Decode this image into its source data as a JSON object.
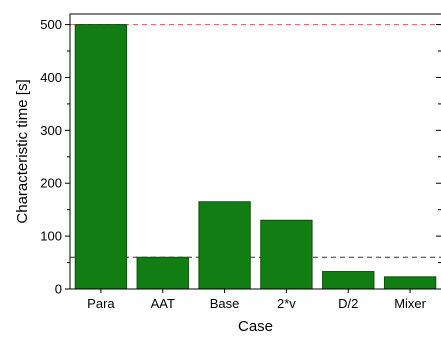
{
  "chart_data": {
    "type": "bar",
    "title": "",
    "xlabel": "Case",
    "ylabel": "Characteristic time [s]",
    "categories": [
      "Para",
      "AAT",
      "Base",
      "2*v",
      "D/2",
      "Mixer"
    ],
    "values": [
      500,
      60,
      165,
      130,
      33,
      23
    ],
    "ylim": [
      0,
      520
    ],
    "yticks": [
      0,
      100,
      200,
      300,
      400,
      500
    ],
    "grid": false,
    "bar_color": "#127d12",
    "bar_edge_color": "#0b4f0b",
    "reference_lines": [
      {
        "value": 500,
        "color": "#e05a5a",
        "style": "dashed"
      },
      {
        "value": 60,
        "color": "#333333",
        "style": "dashed"
      }
    ]
  }
}
